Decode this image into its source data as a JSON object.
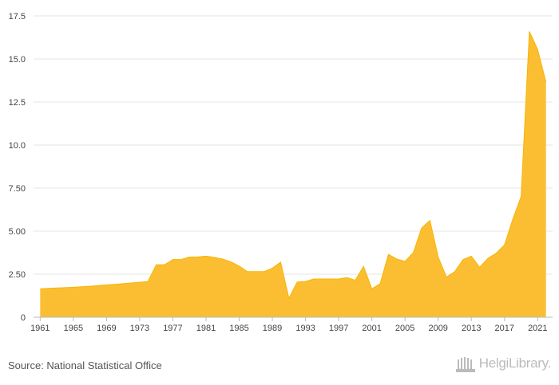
{
  "chart_data": {
    "type": "area",
    "title": "",
    "xlabel": "",
    "ylabel": "",
    "ylim": [
      0,
      17.5
    ],
    "yticks": [
      0,
      2.5,
      5,
      7.5,
      10,
      12.5,
      15,
      17.5
    ],
    "ytick_labels": [
      "0",
      "2.50",
      "5.00",
      "7.50",
      "10.0",
      "12.5",
      "15.0",
      "17.5"
    ],
    "xlim": [
      1961,
      2022
    ],
    "xticks": [
      1961,
      1965,
      1969,
      1973,
      1977,
      1981,
      1985,
      1989,
      1993,
      1997,
      2001,
      2005,
      2009,
      2013,
      2017,
      2021
    ],
    "grid": true,
    "fill_color": "#FBBE33",
    "line_color": "#F7B500",
    "x": [
      1961,
      1962,
      1963,
      1964,
      1965,
      1966,
      1967,
      1968,
      1969,
      1970,
      1971,
      1972,
      1973,
      1974,
      1975,
      1976,
      1977,
      1978,
      1979,
      1980,
      1981,
      1982,
      1983,
      1984,
      1985,
      1986,
      1987,
      1988,
      1989,
      1990,
      1991,
      1992,
      1993,
      1994,
      1995,
      1996,
      1997,
      1998,
      1999,
      2000,
      2001,
      2002,
      2003,
      2004,
      2005,
      2006,
      2007,
      2008,
      2009,
      2010,
      2011,
      2012,
      2013,
      2014,
      2015,
      2016,
      2017,
      2018,
      2019,
      2020,
      2021,
      2022
    ],
    "values": [
      1.65,
      1.68,
      1.7,
      1.72,
      1.74,
      1.77,
      1.8,
      1.84,
      1.88,
      1.91,
      1.95,
      1.99,
      2.03,
      2.08,
      3.05,
      3.05,
      3.35,
      3.35,
      3.5,
      3.5,
      3.55,
      3.48,
      3.38,
      3.22,
      2.97,
      2.65,
      2.65,
      2.65,
      2.85,
      3.2,
      1.1,
      2.05,
      2.08,
      2.22,
      2.22,
      2.22,
      2.22,
      2.3,
      2.15,
      2.95,
      1.65,
      1.95,
      3.65,
      3.38,
      3.25,
      3.75,
      5.18,
      5.62,
      3.5,
      2.33,
      2.65,
      3.35,
      3.55,
      2.9,
      3.42,
      3.72,
      4.2,
      5.7,
      7.0,
      16.6,
      15.55,
      13.65
    ]
  },
  "footer": {
    "source": "Source: National Statistical Office",
    "logo_text": "HelgiLibrary."
  }
}
